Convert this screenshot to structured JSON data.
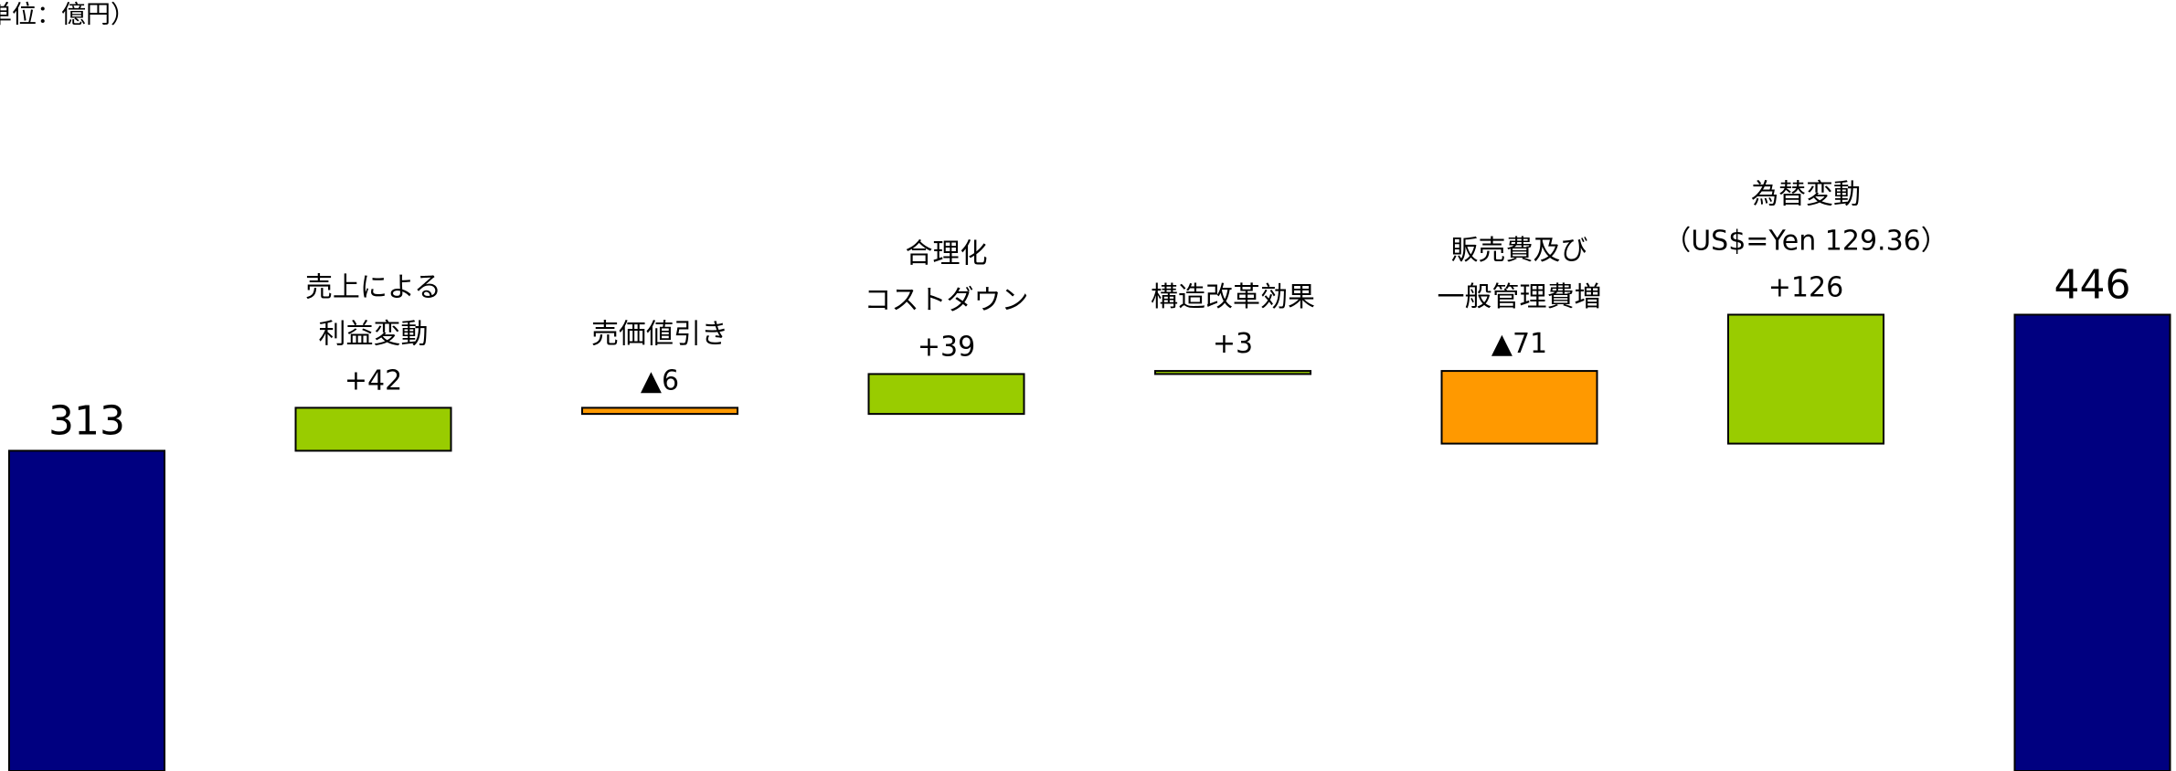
{
  "unit_label": "単位：億円）",
  "chart_data": {
    "type": "bar",
    "subtype": "waterfall",
    "unit_label": "単位：億円）",
    "colors": {
      "total": "#000080",
      "increase": "#99CC00",
      "decrease": "#FF9900",
      "edge": "#000000"
    },
    "bars": [
      {
        "kind": "total",
        "label_lines": [],
        "value_label": "313",
        "value": 313
      },
      {
        "kind": "increase",
        "label_lines": [
          "売上による",
          "利益変動"
        ],
        "value_label": "+42",
        "value": 42
      },
      {
        "kind": "decrease",
        "label_lines": [
          "売価値引き"
        ],
        "value_label": "▲6",
        "value": -6
      },
      {
        "kind": "increase",
        "label_lines": [
          "合理化",
          "コストダウン"
        ],
        "value_label": "+39",
        "value": 39
      },
      {
        "kind": "increase",
        "label_lines": [
          "構造改革効果"
        ],
        "value_label": "+3",
        "value": 3
      },
      {
        "kind": "decrease",
        "label_lines": [
          "販売費及び",
          "一般管理費増"
        ],
        "value_label": "▲71",
        "value": -71
      },
      {
        "kind": "increase",
        "label_lines": [
          "為替変動",
          "（US$=Yen 129.36）"
        ],
        "value_label": "+126",
        "value": 126
      },
      {
        "kind": "total",
        "label_lines": [],
        "value_label": "446",
        "value": 446
      }
    ]
  }
}
